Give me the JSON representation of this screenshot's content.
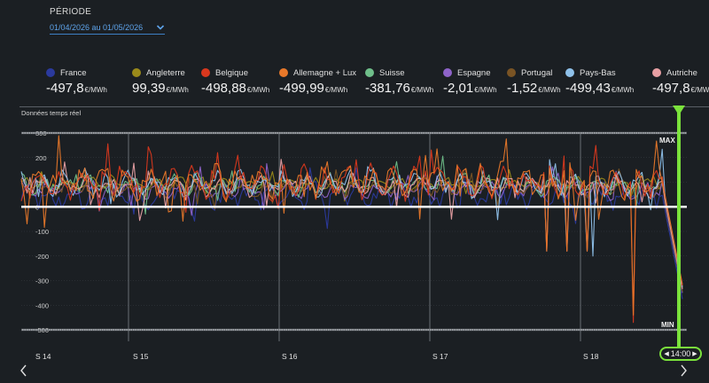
{
  "period": {
    "label": "PÉRIODE",
    "value": "01/04/2026 au 01/05/2026"
  },
  "legend": [
    {
      "name": "France",
      "value": "-497,8",
      "unit": "€/MWh",
      "color": "#2b3a9e"
    },
    {
      "name": "Angleterre",
      "value": "99,39",
      "unit": "€/MWh",
      "color": "#9a8a1a"
    },
    {
      "name": "Belgique",
      "value": "-498,88",
      "unit": "€/MWh",
      "color": "#d9381e"
    },
    {
      "name": "Allemagne + Lux",
      "value": "-499,99",
      "unit": "€/MWh",
      "color": "#e8782a"
    },
    {
      "name": "Suisse",
      "value": "-381,76",
      "unit": "€/MWh",
      "color": "#6fbf8a"
    },
    {
      "name": "Espagne",
      "value": "-2,01",
      "unit": "€/MWh",
      "color": "#8e63c9"
    },
    {
      "name": "Portugal",
      "value": "-1,52",
      "unit": "€/MWh",
      "color": "#7a5424"
    },
    {
      "name": "Pays-Bas",
      "value": "-499,43",
      "unit": "€/MWh",
      "color": "#8fc1ea"
    },
    {
      "name": "Autriche",
      "value": "-497,8",
      "unit": "€/MWh",
      "color": "#e8a0a4"
    }
  ],
  "realtime_label": "Données temps réel",
  "time_badge": "14:00",
  "chart_data": {
    "type": "line",
    "x_labels": [
      "S 14",
      "S 15",
      "S 16",
      "S 17",
      "S 18"
    ],
    "y_ticks": [
      300,
      200,
      100,
      0,
      -100,
      -200,
      -300,
      -400,
      -500
    ],
    "ylim": [
      -500,
      300
    ],
    "max_label": "MAX",
    "min_label": "MIN",
    "zero_line": 0,
    "grid": true,
    "series": [
      {
        "color": "#2b3a9e",
        "base": 45,
        "amp": 55,
        "seed": 3
      },
      {
        "color": "#9a8a1a",
        "base": 95,
        "amp": 25,
        "seed": 7
      },
      {
        "color": "#8e63c9",
        "base": 70,
        "amp": 40,
        "seed": 11
      },
      {
        "color": "#7a5424",
        "base": 75,
        "amp": 35,
        "seed": 13
      },
      {
        "color": "#6fbf8a",
        "base": 90,
        "amp": 45,
        "seed": 17
      },
      {
        "color": "#e8a0a4",
        "base": 85,
        "amp": 50,
        "seed": 19
      },
      {
        "color": "#8fc1ea",
        "base": 95,
        "amp": 55,
        "seed": 23
      },
      {
        "color": "#d9381e",
        "base": 100,
        "amp": 70,
        "seed": 29
      },
      {
        "color": "#e8782a",
        "base": 105,
        "amp": 75,
        "seed": 31
      }
    ]
  }
}
